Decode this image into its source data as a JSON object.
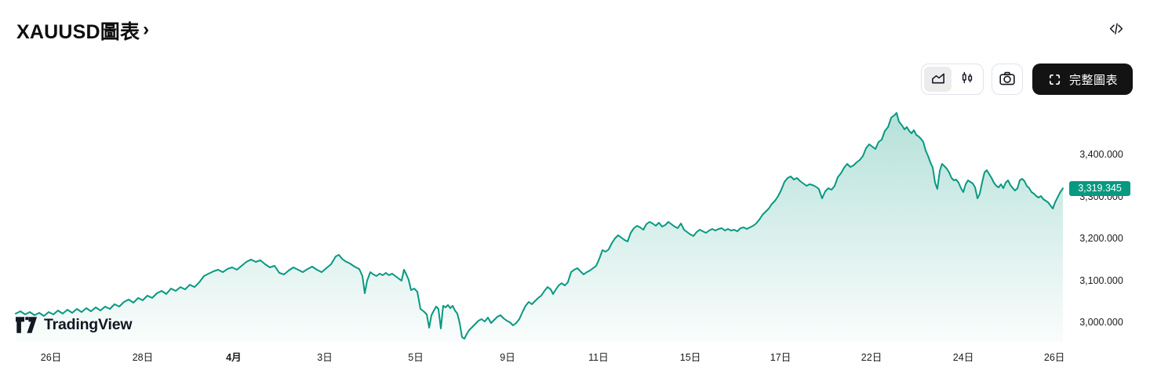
{
  "header": {
    "title": "XAUUSD圖表",
    "chevron": "›"
  },
  "toolbar": {
    "chart_type_options": [
      "area",
      "candlestick"
    ],
    "selected_chart_type": "area",
    "full_chart_label": "完整圖表",
    "icons": [
      "area-chart-icon",
      "candlestick-icon",
      "camera-icon",
      "fullscreen-icon",
      "code-embed-icon"
    ]
  },
  "watermark": {
    "brand": "TradingView"
  },
  "colors": {
    "line": "#089981",
    "badge": "#089981",
    "text": "#1b1b1b",
    "button_dark": "#131313",
    "border": "#e0e3eb"
  },
  "chart_data": {
    "type": "area",
    "symbol": "XAUUSD",
    "title": "XAUUSD圖表",
    "grid": false,
    "legend": "none",
    "last_price": 3319.345,
    "last_price_label": "3,319.345",
    "ylim": [
      2953,
      3506
    ],
    "y_axis": {
      "side": "right",
      "ticks": [
        {
          "label": "3,400.000",
          "value": 3400
        },
        {
          "label": "3,300.000",
          "value": 3300
        },
        {
          "label": "3,200.000",
          "value": 3200
        },
        {
          "label": "3,100.000",
          "value": 3100
        },
        {
          "label": "3,000.000",
          "value": 3000
        }
      ]
    },
    "x_axis": {
      "labels": [
        {
          "label": "26日",
          "x": 0.0337,
          "bold": false
        },
        {
          "label": "28日",
          "x": 0.1213,
          "bold": false
        },
        {
          "label": "4月",
          "x": 0.2082,
          "bold": true
        },
        {
          "label": "3日",
          "x": 0.2951,
          "bold": false
        },
        {
          "label": "5日",
          "x": 0.382,
          "bold": false
        },
        {
          "label": "9日",
          "x": 0.4697,
          "bold": false
        },
        {
          "label": "11日",
          "x": 0.5565,
          "bold": false
        },
        {
          "label": "15日",
          "x": 0.6442,
          "bold": false
        },
        {
          "label": "17日",
          "x": 0.7303,
          "bold": false
        },
        {
          "label": "22日",
          "x": 0.8172,
          "bold": false
        },
        {
          "label": "24日",
          "x": 0.9049,
          "bold": false
        },
        {
          "label": "26日",
          "x": 0.9918,
          "bold": false
        }
      ]
    },
    "points": [
      [
        0.0,
        3020.6
      ],
      [
        0.0045,
        3026.2
      ],
      [
        0.009,
        3018.7
      ],
      [
        0.0135,
        3024.3
      ],
      [
        0.018,
        3016.8
      ],
      [
        0.0225,
        3022.4
      ],
      [
        0.027,
        3014.9
      ],
      [
        0.0315,
        3024.3
      ],
      [
        0.036,
        3018.7
      ],
      [
        0.0404,
        3028.0
      ],
      [
        0.0449,
        3020.6
      ],
      [
        0.0494,
        3029.9
      ],
      [
        0.0539,
        3022.4
      ],
      [
        0.0584,
        3031.7
      ],
      [
        0.0629,
        3024.3
      ],
      [
        0.0674,
        3033.6
      ],
      [
        0.0719,
        3026.2
      ],
      [
        0.0764,
        3035.5
      ],
      [
        0.0809,
        3028.0
      ],
      [
        0.0854,
        3037.3
      ],
      [
        0.0899,
        3031.7
      ],
      [
        0.0944,
        3042.9
      ],
      [
        0.0989,
        3037.3
      ],
      [
        0.1034,
        3048.5
      ],
      [
        0.1079,
        3054.2
      ],
      [
        0.1124,
        3046.7
      ],
      [
        0.1169,
        3057.9
      ],
      [
        0.1213,
        3052.3
      ],
      [
        0.1258,
        3063.5
      ],
      [
        0.1303,
        3057.9
      ],
      [
        0.1348,
        3069.1
      ],
      [
        0.1393,
        3074.7
      ],
      [
        0.1438,
        3067.2
      ],
      [
        0.1483,
        3080.3
      ],
      [
        0.1528,
        3074.7
      ],
      [
        0.1573,
        3084.0
      ],
      [
        0.1618,
        3078.4
      ],
      [
        0.1663,
        3089.6
      ],
      [
        0.1708,
        3084.0
      ],
      [
        0.1753,
        3095.2
      ],
      [
        0.1798,
        3110.2
      ],
      [
        0.1843,
        3115.8
      ],
      [
        0.1888,
        3121.4
      ],
      [
        0.1933,
        3125.2
      ],
      [
        0.1978,
        3119.5
      ],
      [
        0.2022,
        3127.0
      ],
      [
        0.2067,
        3130.8
      ],
      [
        0.2112,
        3125.2
      ],
      [
        0.2157,
        3134.5
      ],
      [
        0.2202,
        3143.9
      ],
      [
        0.2247,
        3149.5
      ],
      [
        0.2292,
        3143.9
      ],
      [
        0.2337,
        3147.6
      ],
      [
        0.2382,
        3138.3
      ],
      [
        0.2427,
        3130.8
      ],
      [
        0.2472,
        3134.5
      ],
      [
        0.2517,
        3117.7
      ],
      [
        0.2562,
        3114.0
      ],
      [
        0.2607,
        3123.3
      ],
      [
        0.2652,
        3130.8
      ],
      [
        0.2697,
        3125.2
      ],
      [
        0.2742,
        3119.5
      ],
      [
        0.2787,
        3127.0
      ],
      [
        0.2831,
        3132.7
      ],
      [
        0.2876,
        3125.2
      ],
      [
        0.2921,
        3119.5
      ],
      [
        0.2966,
        3128.9
      ],
      [
        0.3011,
        3138.3
      ],
      [
        0.3056,
        3157.0
      ],
      [
        0.3086,
        3160.7
      ],
      [
        0.3116,
        3151.4
      ],
      [
        0.3146,
        3145.7
      ],
      [
        0.3191,
        3140.1
      ],
      [
        0.3236,
        3132.7
      ],
      [
        0.3281,
        3127.0
      ],
      [
        0.3311,
        3110.2
      ],
      [
        0.3333,
        3069.1
      ],
      [
        0.3356,
        3099.0
      ],
      [
        0.3386,
        3119.5
      ],
      [
        0.3416,
        3114.0
      ],
      [
        0.3446,
        3110.2
      ],
      [
        0.3475,
        3115.8
      ],
      [
        0.3505,
        3112.1
      ],
      [
        0.3535,
        3117.7
      ],
      [
        0.3565,
        3112.1
      ],
      [
        0.3595,
        3115.8
      ],
      [
        0.3625,
        3110.2
      ],
      [
        0.3655,
        3104.6
      ],
      [
        0.3685,
        3099.0
      ],
      [
        0.3708,
        3125.2
      ],
      [
        0.373,
        3114.0
      ],
      [
        0.3753,
        3100.9
      ],
      [
        0.3775,
        3076.6
      ],
      [
        0.3805,
        3080.3
      ],
      [
        0.3835,
        3072.8
      ],
      [
        0.3865,
        3031.7
      ],
      [
        0.3895,
        3026.2
      ],
      [
        0.3925,
        3018.7
      ],
      [
        0.3948,
        2986.9
      ],
      [
        0.397,
        3016.8
      ],
      [
        0.3993,
        3028.0
      ],
      [
        0.4015,
        3037.3
      ],
      [
        0.4037,
        3031.7
      ],
      [
        0.406,
        2985.0
      ],
      [
        0.4082,
        3039.2
      ],
      [
        0.4105,
        3035.5
      ],
      [
        0.4127,
        3041.1
      ],
      [
        0.415,
        3033.6
      ],
      [
        0.4172,
        3039.2
      ],
      [
        0.4195,
        3028.0
      ],
      [
        0.4217,
        3020.6
      ],
      [
        0.424,
        2998.1
      ],
      [
        0.4262,
        2964.5
      ],
      [
        0.4285,
        2960.7
      ],
      [
        0.4307,
        2971.9
      ],
      [
        0.433,
        2981.3
      ],
      [
        0.436,
        2988.8
      ],
      [
        0.439,
        2996.3
      ],
      [
        0.4419,
        3003.7
      ],
      [
        0.4449,
        3007.5
      ],
      [
        0.4479,
        3001.9
      ],
      [
        0.4509,
        3011.2
      ],
      [
        0.4539,
        2998.1
      ],
      [
        0.4569,
        3005.6
      ],
      [
        0.4599,
        3013.1
      ],
      [
        0.4629,
        3016.8
      ],
      [
        0.4659,
        3009.3
      ],
      [
        0.4689,
        3003.7
      ],
      [
        0.4719,
        3000.0
      ],
      [
        0.4749,
        2992.5
      ],
      [
        0.4779,
        2998.1
      ],
      [
        0.4809,
        3007.5
      ],
      [
        0.4839,
        3024.3
      ],
      [
        0.4869,
        3039.2
      ],
      [
        0.4899,
        3048.5
      ],
      [
        0.4929,
        3042.9
      ],
      [
        0.4959,
        3050.4
      ],
      [
        0.4989,
        3057.9
      ],
      [
        0.5019,
        3063.5
      ],
      [
        0.5049,
        3074.7
      ],
      [
        0.5079,
        3084.0
      ],
      [
        0.5109,
        3078.4
      ],
      [
        0.5131,
        3067.2
      ],
      [
        0.5154,
        3076.6
      ],
      [
        0.5184,
        3087.7
      ],
      [
        0.5213,
        3093.3
      ],
      [
        0.5243,
        3087.7
      ],
      [
        0.5273,
        3095.2
      ],
      [
        0.5303,
        3119.5
      ],
      [
        0.5333,
        3125.2
      ],
      [
        0.5363,
        3128.9
      ],
      [
        0.5393,
        3121.4
      ],
      [
        0.5423,
        3114.0
      ],
      [
        0.5453,
        3119.5
      ],
      [
        0.5483,
        3123.3
      ],
      [
        0.5513,
        3128.9
      ],
      [
        0.5543,
        3134.5
      ],
      [
        0.5573,
        3151.4
      ],
      [
        0.5603,
        3171.9
      ],
      [
        0.5633,
        3168.2
      ],
      [
        0.5663,
        3173.8
      ],
      [
        0.5693,
        3188.8
      ],
      [
        0.5723,
        3200.0
      ],
      [
        0.5753,
        3207.5
      ],
      [
        0.5783,
        3201.9
      ],
      [
        0.5813,
        3196.3
      ],
      [
        0.5843,
        3192.5
      ],
      [
        0.5873,
        3213.1
      ],
      [
        0.5903,
        3224.3
      ],
      [
        0.5933,
        3229.9
      ],
      [
        0.5963,
        3226.2
      ],
      [
        0.5993,
        3220.6
      ],
      [
        0.6022,
        3233.6
      ],
      [
        0.6052,
        3239.3
      ],
      [
        0.6082,
        3235.5
      ],
      [
        0.6112,
        3229.9
      ],
      [
        0.6142,
        3237.4
      ],
      [
        0.6172,
        3228.0
      ],
      [
        0.6202,
        3231.8
      ],
      [
        0.6232,
        3239.3
      ],
      [
        0.6262,
        3233.6
      ],
      [
        0.6292,
        3228.0
      ],
      [
        0.6322,
        3224.3
      ],
      [
        0.6352,
        3235.5
      ],
      [
        0.6382,
        3220.6
      ],
      [
        0.6412,
        3214.9
      ],
      [
        0.6442,
        3209.3
      ],
      [
        0.6472,
        3205.6
      ],
      [
        0.6502,
        3214.9
      ],
      [
        0.6532,
        3220.6
      ],
      [
        0.6562,
        3216.8
      ],
      [
        0.6592,
        3213.1
      ],
      [
        0.6622,
        3218.7
      ],
      [
        0.6652,
        3222.4
      ],
      [
        0.6682,
        3218.7
      ],
      [
        0.6712,
        3222.4
      ],
      [
        0.6742,
        3224.3
      ],
      [
        0.6772,
        3218.7
      ],
      [
        0.6801,
        3222.4
      ],
      [
        0.6831,
        3218.7
      ],
      [
        0.6861,
        3220.6
      ],
      [
        0.6891,
        3216.8
      ],
      [
        0.6921,
        3224.3
      ],
      [
        0.6951,
        3226.2
      ],
      [
        0.6981,
        3222.4
      ],
      [
        0.7011,
        3226.2
      ],
      [
        0.7041,
        3229.9
      ],
      [
        0.7071,
        3235.5
      ],
      [
        0.7101,
        3244.9
      ],
      [
        0.7131,
        3256.1
      ],
      [
        0.7161,
        3263.6
      ],
      [
        0.7191,
        3271.0
      ],
      [
        0.7221,
        3282.2
      ],
      [
        0.7251,
        3289.7
      ],
      [
        0.7281,
        3300.9
      ],
      [
        0.7311,
        3315.9
      ],
      [
        0.7341,
        3334.6
      ],
      [
        0.7371,
        3343.9
      ],
      [
        0.7401,
        3347.7
      ],
      [
        0.7431,
        3340.2
      ],
      [
        0.7461,
        3343.9
      ],
      [
        0.7491,
        3336.4
      ],
      [
        0.7521,
        3330.8
      ],
      [
        0.7551,
        3325.2
      ],
      [
        0.7581,
        3328.9
      ],
      [
        0.761,
        3327.1
      ],
      [
        0.764,
        3323.4
      ],
      [
        0.767,
        3317.8
      ],
      [
        0.77,
        3295.3
      ],
      [
        0.773,
        3312.1
      ],
      [
        0.776,
        3319.6
      ],
      [
        0.779,
        3315.9
      ],
      [
        0.782,
        3325.2
      ],
      [
        0.785,
        3345.8
      ],
      [
        0.788,
        3355.1
      ],
      [
        0.791,
        3368.2
      ],
      [
        0.794,
        3377.6
      ],
      [
        0.797,
        3370.1
      ],
      [
        0.8,
        3373.8
      ],
      [
        0.803,
        3381.3
      ],
      [
        0.806,
        3386.9
      ],
      [
        0.809,
        3396.3
      ],
      [
        0.812,
        3415.0
      ],
      [
        0.815,
        3424.3
      ],
      [
        0.818,
        3418.7
      ],
      [
        0.821,
        3413.1
      ],
      [
        0.824,
        3429.9
      ],
      [
        0.827,
        3435.5
      ],
      [
        0.83,
        3456.1
      ],
      [
        0.833,
        3465.4
      ],
      [
        0.836,
        3487.9
      ],
      [
        0.839,
        3493.5
      ],
      [
        0.8412,
        3499.1
      ],
      [
        0.8434,
        3478.5
      ],
      [
        0.8464,
        3469.2
      ],
      [
        0.8487,
        3459.8
      ],
      [
        0.8509,
        3465.4
      ],
      [
        0.8532,
        3456.1
      ],
      [
        0.8554,
        3450.5
      ],
      [
        0.8577,
        3457.9
      ],
      [
        0.8599,
        3446.7
      ],
      [
        0.8622,
        3443.0
      ],
      [
        0.8644,
        3437.4
      ],
      [
        0.8667,
        3429.9
      ],
      [
        0.8689,
        3409.3
      ],
      [
        0.8712,
        3396.3
      ],
      [
        0.8734,
        3381.3
      ],
      [
        0.8757,
        3368.2
      ],
      [
        0.8779,
        3332.7
      ],
      [
        0.8801,
        3317.8
      ],
      [
        0.8824,
        3360.7
      ],
      [
        0.8846,
        3377.6
      ],
      [
        0.8869,
        3372.0
      ],
      [
        0.8891,
        3366.4
      ],
      [
        0.8914,
        3357.0
      ],
      [
        0.8936,
        3343.9
      ],
      [
        0.8959,
        3338.3
      ],
      [
        0.8981,
        3340.2
      ],
      [
        0.9004,
        3332.7
      ],
      [
        0.9026,
        3319.6
      ],
      [
        0.9049,
        3310.3
      ],
      [
        0.9071,
        3328.9
      ],
      [
        0.9094,
        3338.3
      ],
      [
        0.9116,
        3334.6
      ],
      [
        0.9139,
        3330.8
      ],
      [
        0.9161,
        3321.5
      ],
      [
        0.9184,
        3295.3
      ],
      [
        0.9206,
        3306.6
      ],
      [
        0.9228,
        3332.7
      ],
      [
        0.9251,
        3357.0
      ],
      [
        0.9273,
        3362.6
      ],
      [
        0.9296,
        3353.3
      ],
      [
        0.9318,
        3343.9
      ],
      [
        0.9341,
        3332.7
      ],
      [
        0.9363,
        3325.2
      ],
      [
        0.9386,
        3321.5
      ],
      [
        0.9408,
        3328.9
      ],
      [
        0.9431,
        3319.6
      ],
      [
        0.9453,
        3332.7
      ],
      [
        0.9476,
        3338.3
      ],
      [
        0.9498,
        3327.1
      ],
      [
        0.9521,
        3319.6
      ],
      [
        0.9543,
        3314.0
      ],
      [
        0.9566,
        3319.6
      ],
      [
        0.9588,
        3338.3
      ],
      [
        0.961,
        3342.1
      ],
      [
        0.9633,
        3336.4
      ],
      [
        0.9655,
        3325.2
      ],
      [
        0.9678,
        3319.6
      ],
      [
        0.97,
        3310.3
      ],
      [
        0.9723,
        3306.6
      ],
      [
        0.9745,
        3300.9
      ],
      [
        0.9768,
        3297.2
      ],
      [
        0.979,
        3300.9
      ],
      [
        0.9813,
        3293.5
      ],
      [
        0.9835,
        3289.7
      ],
      [
        0.9858,
        3286.0
      ],
      [
        0.988,
        3278.5
      ],
      [
        0.9903,
        3271.0
      ],
      [
        0.9925,
        3286.0
      ],
      [
        0.9948,
        3297.2
      ],
      [
        0.997,
        3308.4
      ],
      [
        1.0,
        3319.3
      ]
    ]
  }
}
